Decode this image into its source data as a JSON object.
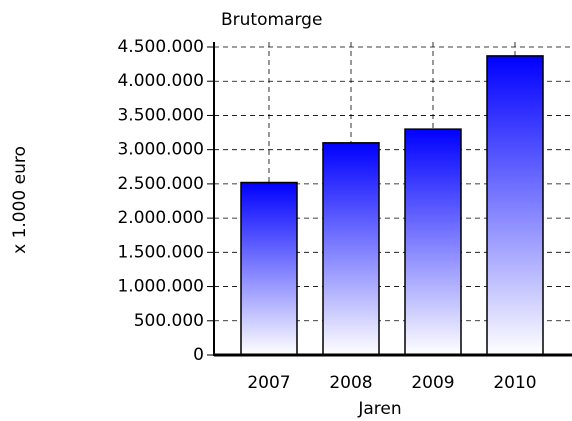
{
  "chart_data": {
    "type": "bar",
    "title": "Brutomarge",
    "y_label": "x 1.000 euro",
    "x_label": "Jaren",
    "categories": [
      "2007",
      "2008",
      "2009",
      "2010"
    ],
    "values": [
      2520000,
      3100000,
      3300000,
      4370000
    ],
    "color": "#0000ff",
    "ylim": [
      0,
      4500000
    ],
    "yticks": [
      0,
      {
        "value": 500000,
        "label": "500.000"
      },
      {
        "value": 1000000,
        "label": "1.000.000"
      },
      {
        "value": 1500000,
        "label": "1.500.000"
      },
      {
        "value": 2000000,
        "label": "2.000.000"
      },
      {
        "value": 2500000,
        "label": "2.500.000"
      },
      {
        "value": 3000000,
        "label": "3.000.000"
      },
      {
        "value": 3500000,
        "label": "3.500.000"
      },
      {
        "value": 4000000,
        "label": "4.000.000"
      },
      {
        "value": 4500000,
        "label": "4.500.000"
      }
    ],
    "grid": true
  }
}
